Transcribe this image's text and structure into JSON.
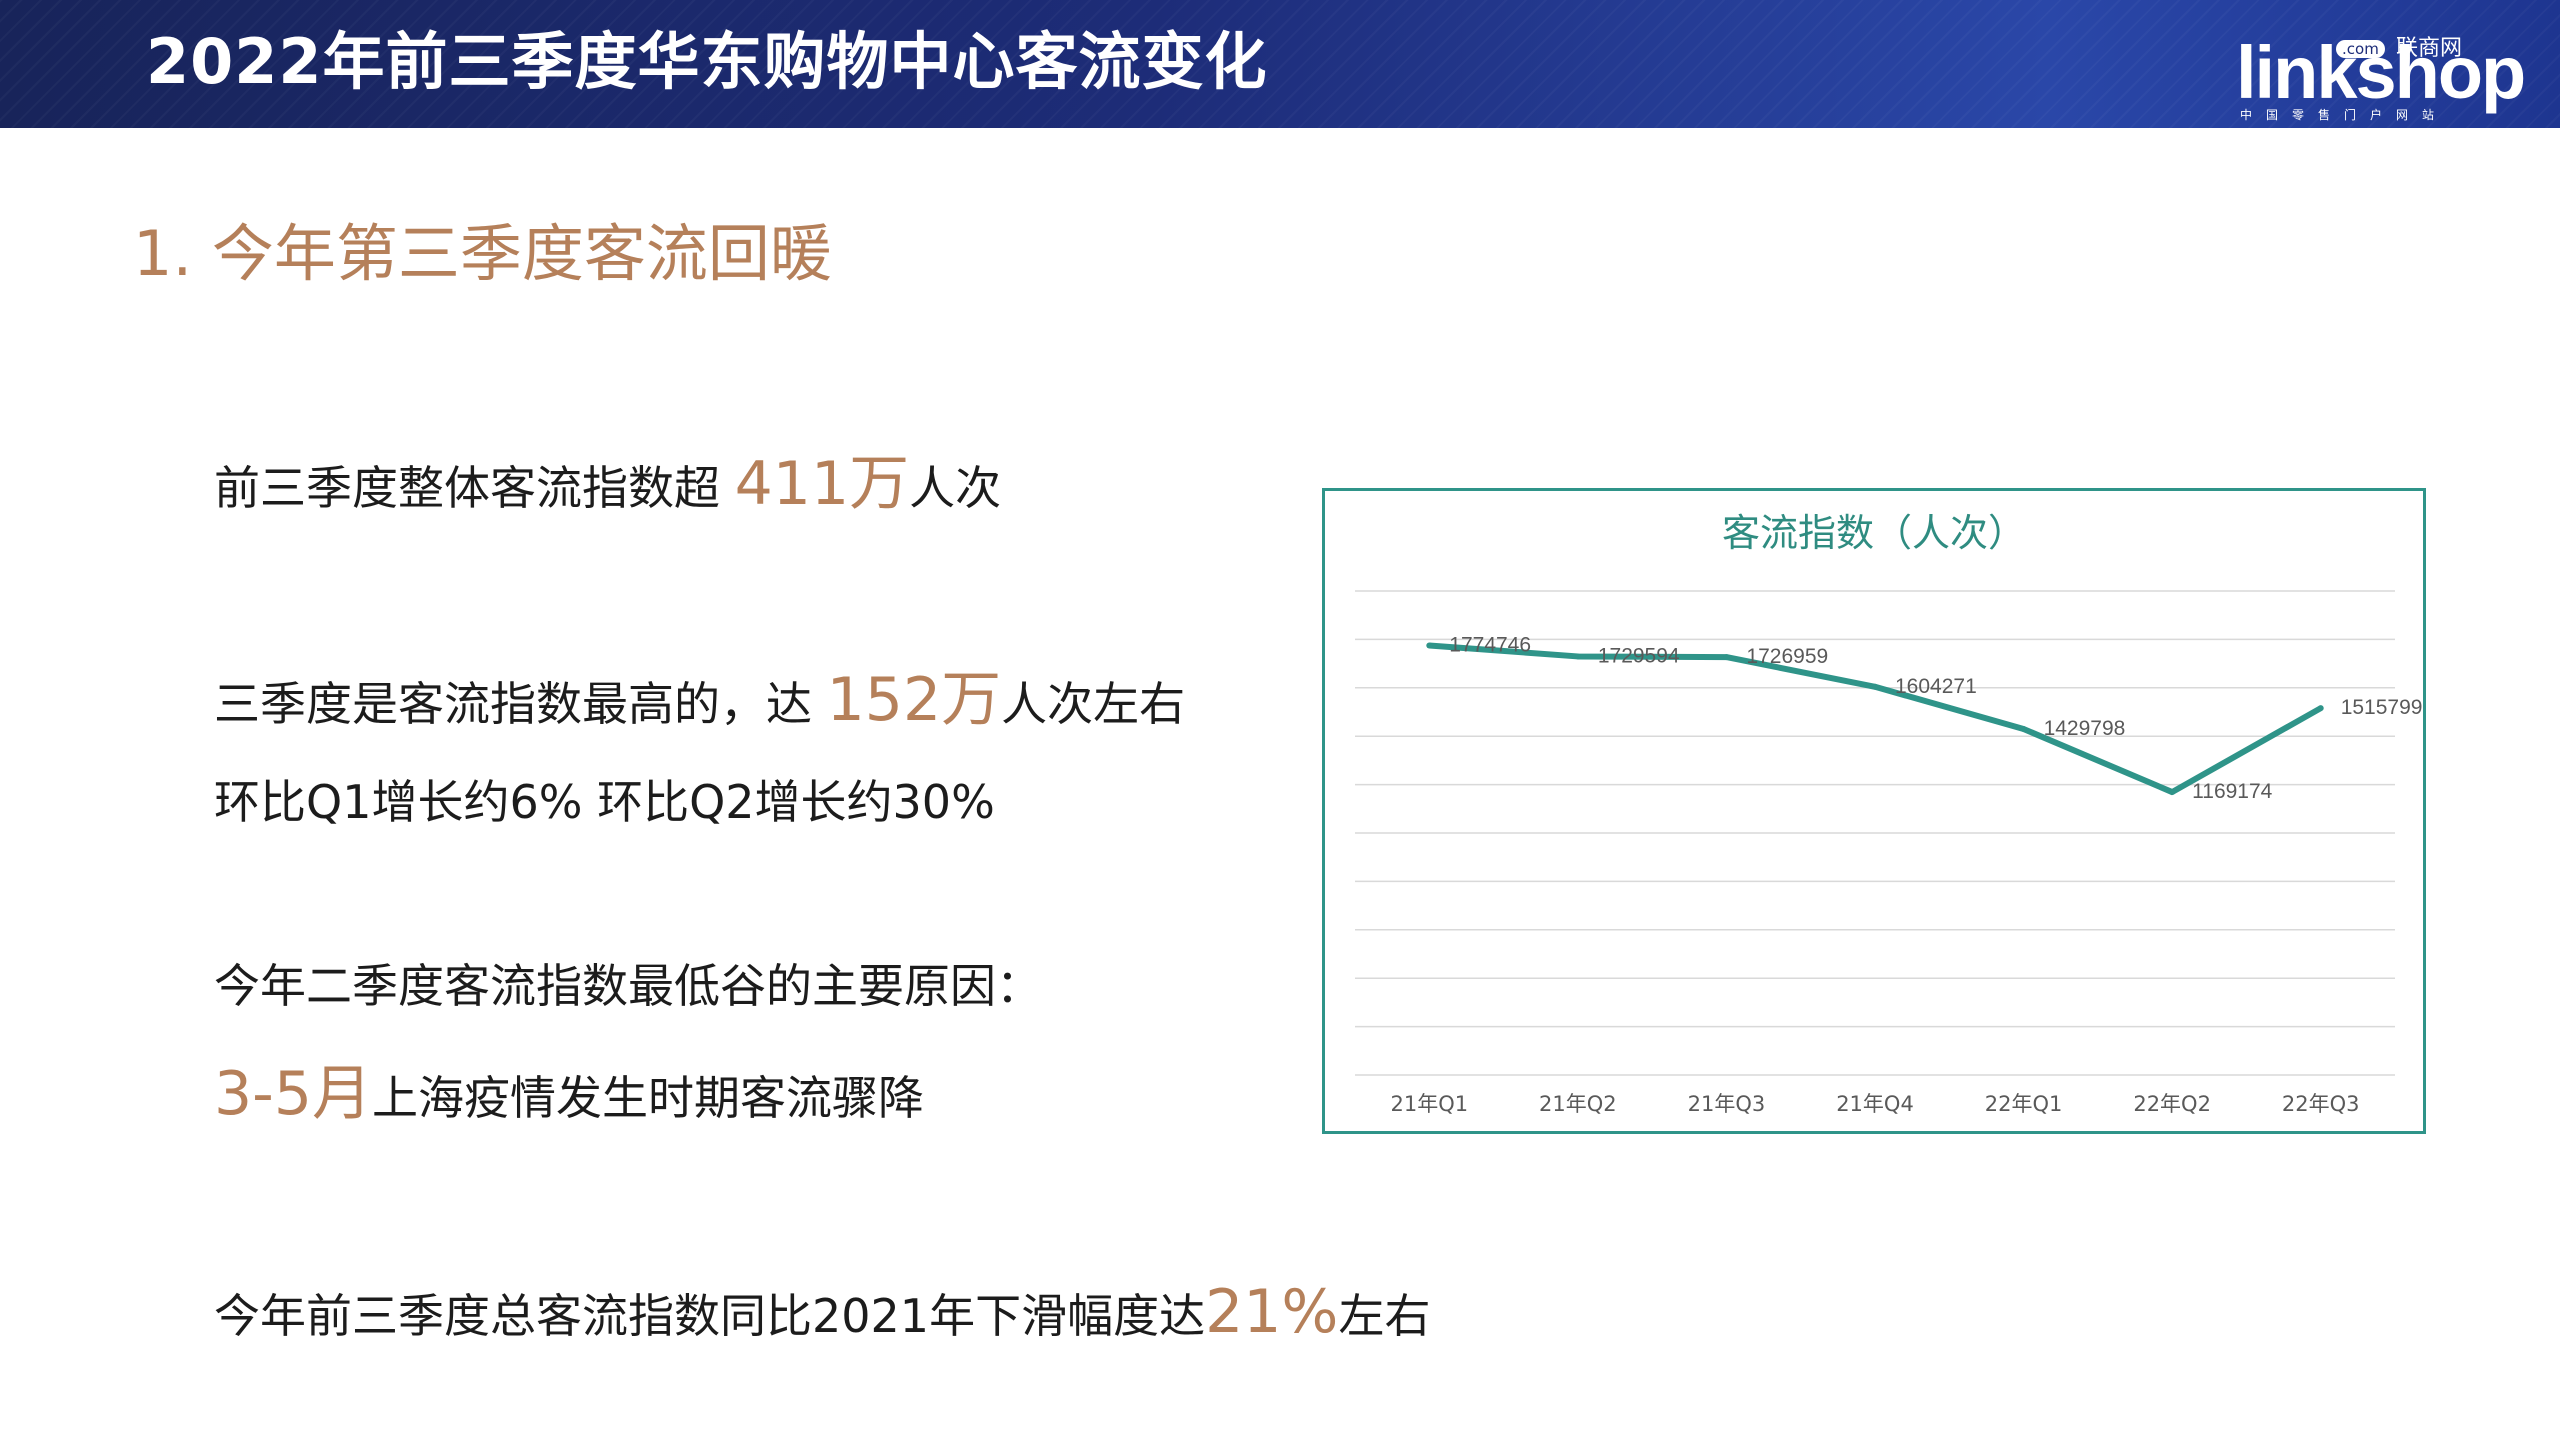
{
  "header": {
    "title": "2022年前三季度华东购物中心客流变化",
    "logo": {
      "text": "linkshop",
      "badge": ".com",
      "cn": "联商网",
      "sub": "中国零售门户网站"
    }
  },
  "section": {
    "heading": "1. 今年第三季度客流回暖"
  },
  "lines": [
    {
      "pre": "前三季度整体客流指数超 ",
      "hl": "411万",
      "post": "人次"
    },
    {
      "pre": "三季度是客流指数最高的，达 ",
      "hl": "152万",
      "post": "人次左右"
    },
    {
      "pre": "环比Q1增长约6% 环比Q2增长约30%",
      "hl": "",
      "post": ""
    },
    {
      "pre": "今年二季度客流指数最低谷的主要原因：",
      "hl": "",
      "post": ""
    },
    {
      "pre": "",
      "hl": "3-5月",
      "post": "上海疫情发生时期客流骤降"
    },
    {
      "pre": "今年前三季度总客流指数同比2021年下滑幅度达",
      "hl": "21%",
      "post": "左右"
    }
  ],
  "colors": {
    "accent": "#b5805a",
    "chart_line": "#2f9489",
    "header": "#1d2c78"
  },
  "chart_data": {
    "type": "line",
    "title": "客流指数（人次）",
    "categories": [
      "21年Q1",
      "21年Q2",
      "21年Q3",
      "21年Q4",
      "22年Q1",
      "22年Q2",
      "22年Q3"
    ],
    "series": [
      {
        "values": [
          1774746,
          1729594,
          1726959,
          1604271,
          1429798,
          1169174,
          1515799
        ]
      }
    ],
    "data_labels": [
      "1774746",
      "1729594",
      "1726959",
      "1604271",
      "1429798",
      "1169174",
      "1515799"
    ],
    "ylim": [
      0,
      2000000
    ],
    "grid": true,
    "legend": "none"
  }
}
